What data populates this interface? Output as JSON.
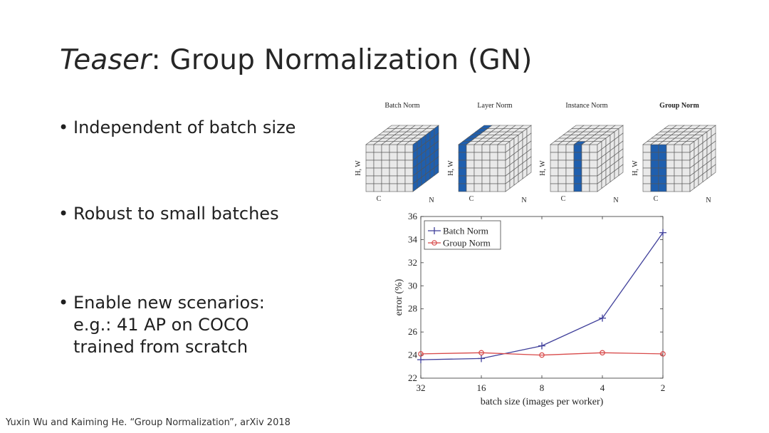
{
  "slide": {
    "title_em": "Teaser",
    "title_rest": ": Group Normalization (GN)",
    "bullets": [
      {
        "text": "Independent of batch size"
      },
      {
        "text": "Robust to small batches"
      },
      {
        "text": "Enable new scenarios:",
        "sub": [
          "e.g.: 41 AP on COCO",
          "trained from scratch"
        ]
      }
    ],
    "citation": "Yuxin Wu and Kaiming He. “Group Normalization”, arXiv 2018"
  },
  "diagram": {
    "labels": [
      "Batch Norm",
      "Layer Norm",
      "Instance Norm",
      "Group Norm"
    ],
    "axis_hw": "H, W",
    "axis_c": "C",
    "axis_n": "N",
    "highlight_color": "#1f5fae",
    "cube_color": "#e9e9e9"
  },
  "chart_data": {
    "type": "line",
    "categories": [
      "32",
      "16",
      "8",
      "4",
      "2"
    ],
    "series": [
      {
        "name": "Batch Norm",
        "values": [
          23.6,
          23.7,
          24.8,
          27.2,
          34.6
        ],
        "color": "#3f3f9a",
        "marker": "plus"
      },
      {
        "name": "Group Norm",
        "values": [
          24.1,
          24.2,
          24.0,
          24.2,
          24.1
        ],
        "color": "#d84a4a",
        "marker": "circle"
      }
    ],
    "xlabel": "batch size (images per worker)",
    "ylabel": "error (%)",
    "ylim": [
      22,
      36
    ],
    "yticks": [
      22,
      24,
      26,
      28,
      30,
      32,
      34,
      36
    ],
    "legend": "top-left",
    "grid": false
  }
}
